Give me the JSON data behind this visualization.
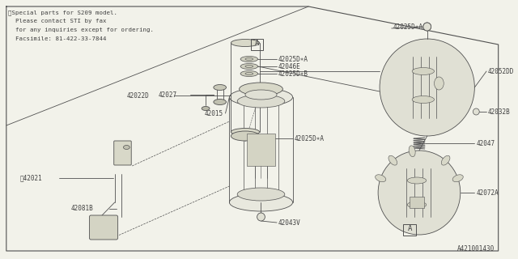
{
  "bg_color": "#f2f2ea",
  "line_color": "#505050",
  "text_color": "#404040",
  "title_note_lines": [
    "※Special parts for S209 model.",
    "  Please contact STI by fax",
    "  for any inquiries except for ordering.",
    "  Facsimile: 81-422-33-7844"
  ],
  "part_number_bottom_right": "A421001430",
  "figsize": [
    6.4,
    3.2
  ],
  "dpi": 100
}
